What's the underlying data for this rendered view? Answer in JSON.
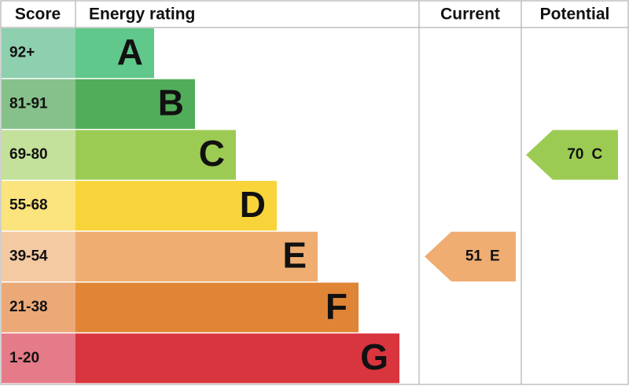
{
  "header": {
    "score": "Score",
    "rating": "Energy rating",
    "current": "Current",
    "potential": "Potential"
  },
  "bands": [
    {
      "score": "92+",
      "letter": "A",
      "color": "#5fc88a",
      "light": "#8dcfae"
    },
    {
      "score": "81-91",
      "letter": "B",
      "color": "#52ad5a",
      "light": "#86c08a"
    },
    {
      "score": "69-80",
      "letter": "C",
      "color": "#9ccb53",
      "light": "#c3e19a"
    },
    {
      "score": "55-68",
      "letter": "D",
      "color": "#f8d43a",
      "light": "#fbe37e"
    },
    {
      "score": "39-54",
      "letter": "E",
      "color": "#efad72",
      "light": "#f4caa3"
    },
    {
      "score": "21-38",
      "letter": "F",
      "color": "#e08536",
      "light": "#eba977"
    },
    {
      "score": "1-20",
      "letter": "G",
      "color": "#d8353f",
      "light": "#e57b88"
    }
  ],
  "current": {
    "score": "51",
    "rating": "E"
  },
  "potential": {
    "score": "70",
    "rating": "C"
  }
}
